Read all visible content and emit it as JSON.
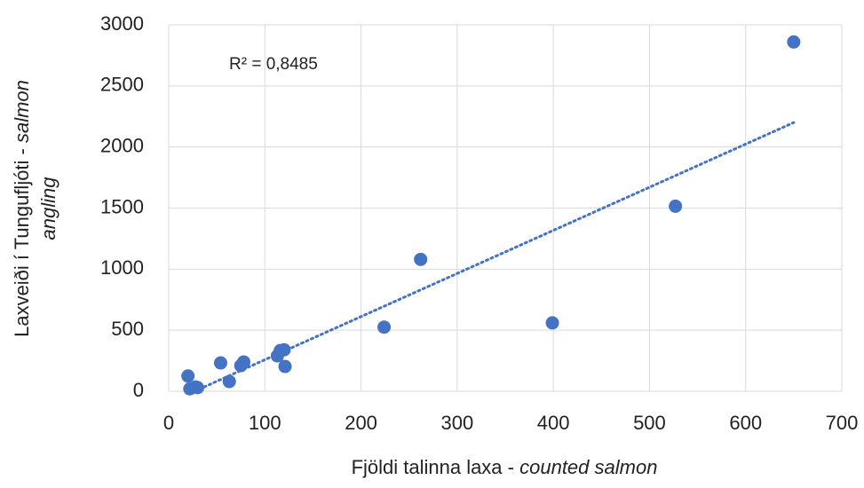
{
  "chart_data": {
    "type": "scatter",
    "annotation": "R² = 0,8485",
    "xlabel": [
      "Fjöldi talinna laxa - ",
      "counted salmon"
    ],
    "ylabel": [
      "Laxveiði í Tungufljóti - ",
      "salmon",
      "angling"
    ],
    "x": [
      650,
      527,
      262,
      399,
      224,
      116,
      120,
      113,
      121,
      54,
      75,
      78,
      63,
      20,
      22,
      28,
      30
    ],
    "y": [
      2860,
      1515,
      1080,
      560,
      525,
      333,
      340,
      290,
      203,
      232,
      210,
      240,
      80,
      125,
      20,
      35,
      30
    ],
    "color": "#4472c4",
    "trendline": {
      "x": [
        37,
        650
      ],
      "y": [
        36,
        2200
      ]
    },
    "xlim": [
      0,
      700
    ],
    "xticks": [
      0,
      100,
      200,
      300,
      400,
      500,
      600,
      700
    ],
    "ylim": [
      0,
      3000
    ],
    "yticks": [
      0,
      500,
      1000,
      1500,
      2000,
      2500,
      3000
    ],
    "grid": true
  }
}
